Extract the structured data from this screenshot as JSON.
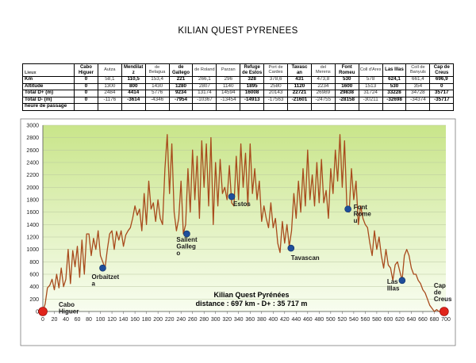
{
  "title": "KILIAN QUEST PYRENEES",
  "table": {
    "columns": [
      {
        "label": "",
        "bold": false
      },
      {
        "label": "Cabo Higuer",
        "bold": true
      },
      {
        "label": "Autza",
        "bold": false
      },
      {
        "label": "Mendilat z",
        "bold": true
      },
      {
        "label": "de Belagua",
        "bold": false
      },
      {
        "label": "de Gallego",
        "bold": true
      },
      {
        "label": "de Roland",
        "bold": false
      },
      {
        "label": "Parzan",
        "bold": false
      },
      {
        "label": "Refuge de Estos",
        "bold": true
      },
      {
        "label": "Port de Cardes",
        "bold": false
      },
      {
        "label": "Tavasc an",
        "bold": true
      },
      {
        "label": "del Merens",
        "bold": false
      },
      {
        "label": "Font Romeu",
        "bold": true
      },
      {
        "label": "Coll d'Ares",
        "bold": false
      },
      {
        "label": "Las Illas",
        "bold": true
      },
      {
        "label": "Coll de Banyuls",
        "bold": false
      },
      {
        "label": "Cap de Creus",
        "bold": true
      }
    ],
    "header_label": "Lieux",
    "rows": [
      {
        "label": "Km",
        "values": [
          "0",
          "58,1",
          "110,5",
          "153,4",
          "221",
          "266,1",
          "296",
          "328",
          "378,6",
          "431",
          "473,8",
          "530",
          "578",
          "624,1",
          "661,4",
          "696,9"
        ]
      },
      {
        "label": "Altitude",
        "values": [
          "0",
          "1300",
          "800",
          "1430",
          "1280",
          "2807",
          "1140",
          "1895",
          "2580",
          "1120",
          "2234",
          "1600",
          "1513",
          "530",
          "354",
          "0"
        ]
      },
      {
        "label": "Total D+ (m)",
        "values": [
          "0",
          "2484",
          "4414",
          "5776",
          "9234",
          "13174",
          "14594",
          "16008",
          "20143",
          "22721",
          "26989",
          "29838",
          "31724",
          "33228",
          "34728",
          "35717"
        ]
      },
      {
        "label": "Total D- (m)",
        "values": [
          "0",
          "-1176",
          "-3614",
          "-4346",
          "-7954",
          "-10367",
          "-13454",
          "-14913",
          "-17563",
          "-21601",
          "-24755",
          "-28158",
          "-30211",
          "-32698",
          "-34374",
          "-35717"
        ]
      },
      {
        "label": "heure de passage",
        "values": [
          "",
          "",
          "",
          "",
          "",
          "",
          "",
          "",
          "",
          "",
          "",
          "",
          "",
          "",
          "",
          ""
        ]
      }
    ]
  },
  "chart_data": {
    "type": "area",
    "title": "Kilian Quest Pyrénées",
    "subtitle": "distance : 697 km - D+ : 35 717 m",
    "xlim": [
      0,
      700
    ],
    "ylim": [
      0,
      3000
    ],
    "x_ticks": [
      0,
      20,
      40,
      60,
      80,
      100,
      120,
      140,
      160,
      180,
      200,
      220,
      240,
      260,
      280,
      300,
      320,
      340,
      360,
      380,
      400,
      420,
      440,
      460,
      480,
      500,
      520,
      540,
      560,
      580,
      600,
      620,
      640,
      660,
      680,
      700
    ],
    "y_ticks": [
      0,
      200,
      400,
      600,
      800,
      1000,
      1200,
      1400,
      1600,
      1800,
      2000,
      2200,
      2400,
      2600,
      2800,
      3000
    ],
    "grid": true,
    "colors": {
      "line": "#a84a1c",
      "fill_top": "#c9e58a",
      "fill_bottom": "#f8fdf0",
      "marker": "#1f4e9b",
      "endpoint": "#e0241b"
    },
    "profile": [
      [
        0,
        0
      ],
      [
        4,
        120
      ],
      [
        8,
        380
      ],
      [
        12,
        420
      ],
      [
        16,
        520
      ],
      [
        20,
        350
      ],
      [
        24,
        600
      ],
      [
        28,
        380
      ],
      [
        32,
        700
      ],
      [
        36,
        400
      ],
      [
        40,
        520
      ],
      [
        44,
        1000
      ],
      [
        48,
        450
      ],
      [
        52,
        980
      ],
      [
        56,
        720
      ],
      [
        60,
        1050
      ],
      [
        64,
        550
      ],
      [
        68,
        1150
      ],
      [
        72,
        600
      ],
      [
        76,
        1250
      ],
      [
        80,
        1250
      ],
      [
        84,
        900
      ],
      [
        88,
        1180
      ],
      [
        92,
        1000
      ],
      [
        96,
        1300
      ],
      [
        100,
        900
      ],
      [
        104,
        800
      ],
      [
        108,
        700
      ],
      [
        112,
        1000
      ],
      [
        116,
        1250
      ],
      [
        120,
        1300
      ],
      [
        124,
        1000
      ],
      [
        128,
        1290
      ],
      [
        132,
        1150
      ],
      [
        136,
        1300
      ],
      [
        140,
        1050
      ],
      [
        144,
        1230
      ],
      [
        148,
        1300
      ],
      [
        152,
        1350
      ],
      [
        156,
        1500
      ],
      [
        160,
        1700
      ],
      [
        164,
        1550
      ],
      [
        168,
        1650
      ],
      [
        172,
        1300
      ],
      [
        176,
        1900
      ],
      [
        180,
        1400
      ],
      [
        184,
        2100
      ],
      [
        188,
        1650
      ],
      [
        192,
        1750
      ],
      [
        196,
        1450
      ],
      [
        200,
        1800
      ],
      [
        204,
        1500
      ],
      [
        208,
        1400
      ],
      [
        212,
        2300
      ],
      [
        216,
        2850
      ],
      [
        220,
        1900
      ],
      [
        224,
        2700
      ],
      [
        228,
        1600
      ],
      [
        232,
        1300
      ],
      [
        236,
        1500
      ],
      [
        240,
        2100
      ],
      [
        244,
        1250
      ],
      [
        248,
        1400
      ],
      [
        252,
        2300
      ],
      [
        256,
        1600
      ],
      [
        260,
        2600
      ],
      [
        264,
        1800
      ],
      [
        268,
        2500
      ],
      [
        272,
        1500
      ],
      [
        276,
        2750
      ],
      [
        280,
        2000
      ],
      [
        284,
        2700
      ],
      [
        288,
        1700
      ],
      [
        292,
        2800
      ],
      [
        296,
        1400
      ],
      [
        300,
        2400
      ],
      [
        304,
        1700
      ],
      [
        308,
        2450
      ],
      [
        312,
        1900
      ],
      [
        316,
        2000
      ],
      [
        320,
        1800
      ],
      [
        324,
        2350
      ],
      [
        328,
        1750
      ],
      [
        332,
        1700
      ],
      [
        336,
        2500
      ],
      [
        340,
        1800
      ],
      [
        344,
        2700
      ],
      [
        348,
        2000
      ],
      [
        352,
        2550
      ],
      [
        356,
        1700
      ],
      [
        360,
        2700
      ],
      [
        364,
        1900
      ],
      [
        368,
        2300
      ],
      [
        372,
        1800
      ],
      [
        376,
        2100
      ],
      [
        380,
        1450
      ],
      [
        384,
        1700
      ],
      [
        388,
        1500
      ],
      [
        392,
        1350
      ],
      [
        396,
        1750
      ],
      [
        400,
        1350
      ],
      [
        404,
        1500
      ],
      [
        408,
        1100
      ],
      [
        412,
        950
      ],
      [
        416,
        1450
      ],
      [
        420,
        1100
      ],
      [
        424,
        1400
      ],
      [
        428,
        1050
      ],
      [
        432,
        1300
      ],
      [
        436,
        1900
      ],
      [
        440,
        1500
      ],
      [
        444,
        2100
      ],
      [
        448,
        1600
      ],
      [
        452,
        2300
      ],
      [
        456,
        1700
      ],
      [
        460,
        2600
      ],
      [
        464,
        1800
      ],
      [
        468,
        2200
      ],
      [
        472,
        1700
      ],
      [
        476,
        2400
      ],
      [
        480,
        1750
      ],
      [
        484,
        2450
      ],
      [
        488,
        1750
      ],
      [
        492,
        1950
      ],
      [
        496,
        1500
      ],
      [
        500,
        2300
      ],
      [
        504,
        1900
      ],
      [
        508,
        2600
      ],
      [
        512,
        2100
      ],
      [
        516,
        2850
      ],
      [
        520,
        2000
      ],
      [
        524,
        2750
      ],
      [
        528,
        1700
      ],
      [
        532,
        1600
      ],
      [
        536,
        2300
      ],
      [
        540,
        1800
      ],
      [
        544,
        2100
      ],
      [
        548,
        1400
      ],
      [
        552,
        1700
      ],
      [
        556,
        1500
      ],
      [
        560,
        1400
      ],
      [
        564,
        1350
      ],
      [
        568,
        1100
      ],
      [
        572,
        900
      ],
      [
        576,
        1300
      ],
      [
        580,
        1000
      ],
      [
        584,
        1200
      ],
      [
        588,
        900
      ],
      [
        592,
        700
      ],
      [
        596,
        1000
      ],
      [
        600,
        750
      ],
      [
        604,
        700
      ],
      [
        608,
        500
      ],
      [
        612,
        750
      ],
      [
        616,
        800
      ],
      [
        620,
        650
      ],
      [
        624,
        500
      ],
      [
        628,
        900
      ],
      [
        632,
        1000
      ],
      [
        636,
        900
      ],
      [
        640,
        700
      ],
      [
        644,
        600
      ],
      [
        648,
        600
      ],
      [
        652,
        500
      ],
      [
        656,
        450
      ],
      [
        660,
        350
      ],
      [
        664,
        300
      ],
      [
        668,
        200
      ],
      [
        672,
        100
      ],
      [
        676,
        50
      ],
      [
        680,
        0
      ],
      [
        684,
        30
      ],
      [
        688,
        0
      ],
      [
        697,
        0
      ]
    ],
    "annotations": [
      {
        "label": "Cabo Higuer",
        "km": 0,
        "alt": 0,
        "type": "endpoint"
      },
      {
        "label": "Orbaitzeta",
        "km": 104,
        "alt": 700,
        "type": "marker"
      },
      {
        "label": "Sallent Gallego",
        "km": 250,
        "alt": 1250,
        "type": "marker"
      },
      {
        "label": "Estos",
        "km": 328,
        "alt": 1850,
        "type": "marker"
      },
      {
        "label": "Tavascan",
        "km": 431,
        "alt": 1020,
        "type": "marker"
      },
      {
        "label": "Font Romeu",
        "km": 530,
        "alt": 1650,
        "type": "marker"
      },
      {
        "label": "Las Illas",
        "km": 624,
        "alt": 500,
        "type": "marker"
      },
      {
        "label": "Cap de Creus",
        "km": 697,
        "alt": 0,
        "type": "endpoint"
      }
    ]
  }
}
